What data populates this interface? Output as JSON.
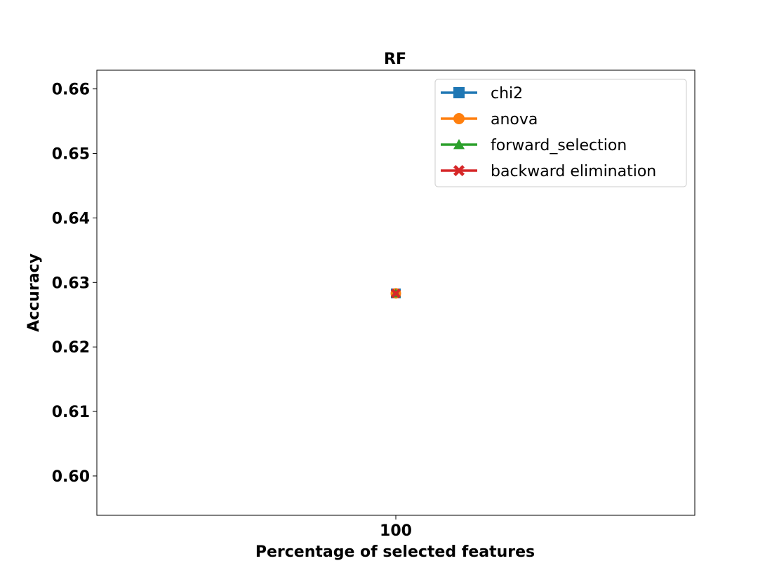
{
  "chart_data": {
    "type": "line",
    "title": "RF",
    "xlabel": "Percentage of selected features",
    "ylabel": "Accuracy",
    "x": [
      100
    ],
    "x_tick_labels": [
      "100"
    ],
    "ylim": [
      0.5939,
      0.6629
    ],
    "y_ticks": [
      0.6,
      0.61,
      0.62,
      0.63,
      0.64,
      0.65,
      0.66
    ],
    "y_tick_labels": [
      "0.60",
      "0.61",
      "0.62",
      "0.63",
      "0.64",
      "0.65",
      "0.66"
    ],
    "grid": false,
    "legend_position": "top-right",
    "series": [
      {
        "name": "chi2",
        "values": [
          0.6283
        ],
        "color": "#1f77b4",
        "marker": "square"
      },
      {
        "name": "anova",
        "values": [
          0.6283
        ],
        "color": "#ff7f0e",
        "marker": "circle"
      },
      {
        "name": "forward_selection",
        "values": [
          0.6283
        ],
        "color": "#2ca02c",
        "marker": "triangle"
      },
      {
        "name": "backward elimination",
        "values": [
          0.6283
        ],
        "color": "#d62728",
        "marker": "x-filled"
      }
    ]
  }
}
